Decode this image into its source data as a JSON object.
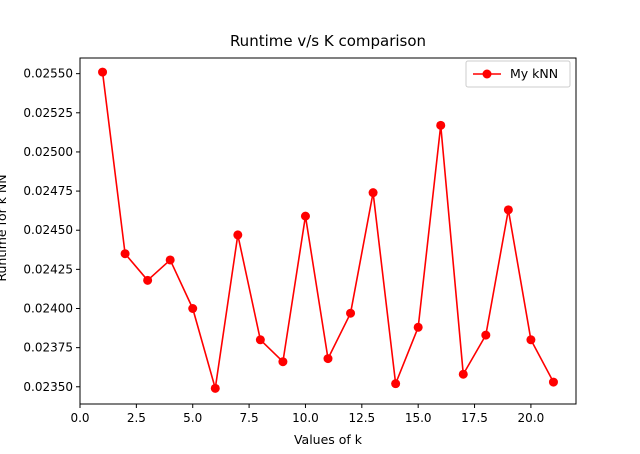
{
  "chart_data": {
    "type": "line",
    "title": "Runtime v/s K comparison",
    "xlabel": "Values of k",
    "ylabel": "Runtime for k NN",
    "xlim": [
      0,
      22
    ],
    "ylim": [
      0.02339,
      0.0256
    ],
    "xticks": [
      0,
      2.5,
      5,
      7.5,
      10,
      12.5,
      15,
      17.5,
      20
    ],
    "xtick_labels": [
      "0.0",
      "2.5",
      "5.0",
      "7.5",
      "10.0",
      "12.5",
      "15.0",
      "17.5",
      "20.0"
    ],
    "yticks": [
      0.0235,
      0.02375,
      0.024,
      0.02425,
      0.0245,
      0.02475,
      0.025,
      0.02525,
      0.0255
    ],
    "ytick_labels": [
      "0.02350",
      "0.02375",
      "0.02400",
      "0.02425",
      "0.02450",
      "0.02475",
      "0.02500",
      "0.02525",
      "0.02550"
    ],
    "grid": false,
    "legend_position": "top-right",
    "series": [
      {
        "name": "My kNN",
        "color": "#ff0000",
        "marker": "circle",
        "x": [
          1,
          2,
          3,
          4,
          5,
          6,
          7,
          8,
          9,
          10,
          11,
          12,
          13,
          14,
          15,
          16,
          17,
          18,
          19,
          20,
          21
        ],
        "y": [
          0.02551,
          0.02435,
          0.02418,
          0.02431,
          0.024,
          0.02349,
          0.02447,
          0.0238,
          0.02366,
          0.02459,
          0.02368,
          0.02397,
          0.02474,
          0.02352,
          0.02388,
          0.02517,
          0.02358,
          0.02383,
          0.02463,
          0.0238,
          0.02353
        ]
      }
    ]
  }
}
